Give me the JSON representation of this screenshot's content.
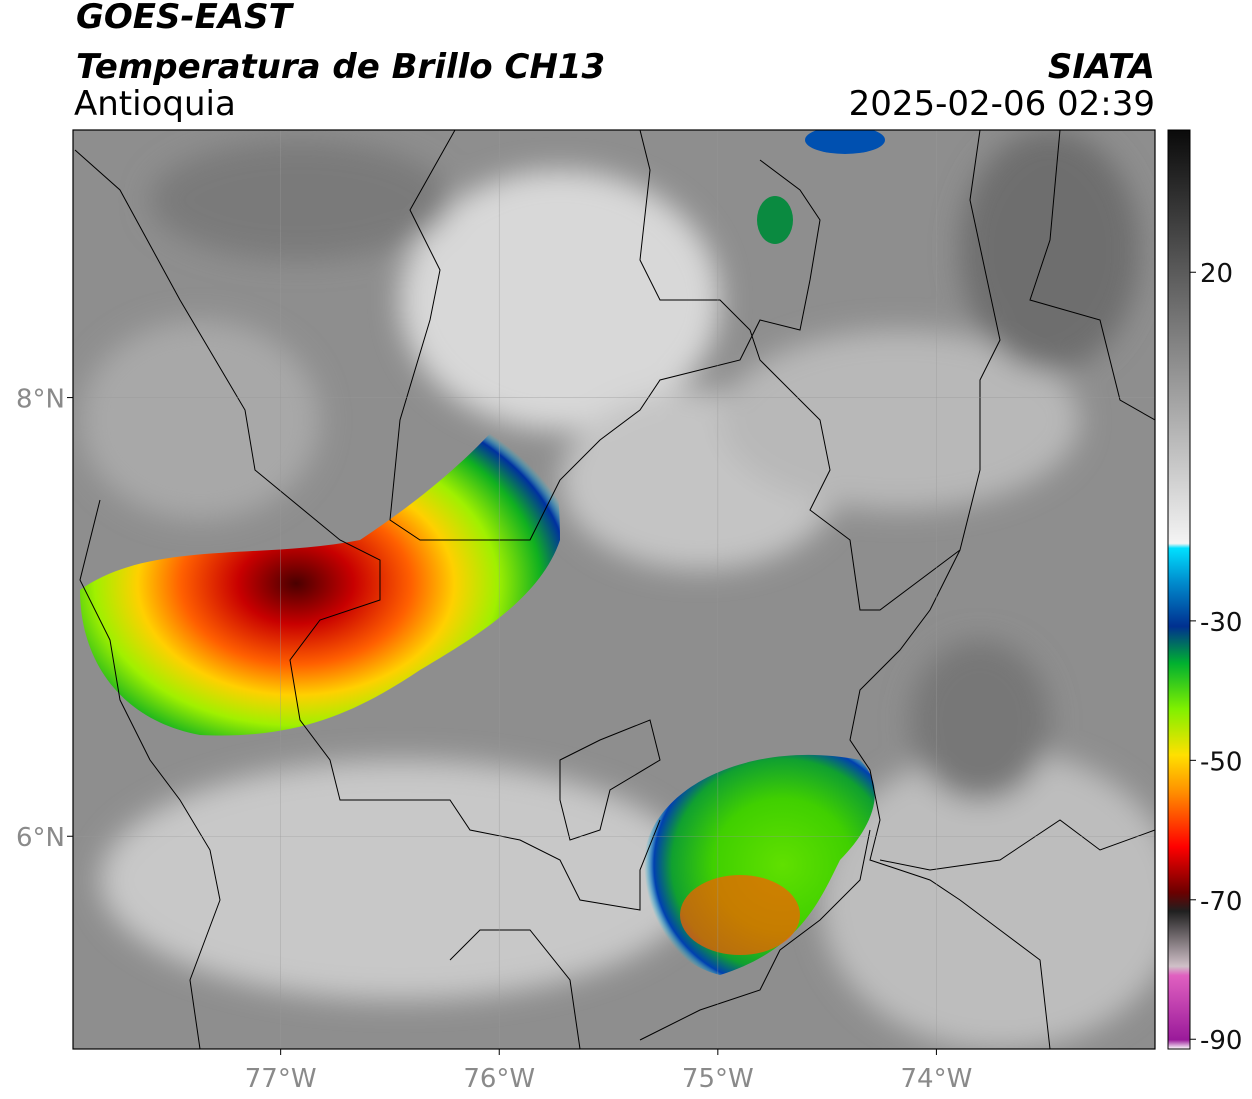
{
  "header": {
    "title": "GOES-EAST",
    "subtitle": "Temperatura de Brillo CH13",
    "region": "Antioquia",
    "source": "SIATA",
    "datetime": "2025-02-06 02:39"
  },
  "map": {
    "xlim": [
      -77.95,
      -73.0
    ],
    "ylim": [
      5.03,
      9.22
    ],
    "lat_ticks": [
      {
        "value": 8,
        "label": "8°N"
      },
      {
        "value": 6,
        "label": "6°N"
      }
    ],
    "lon_ticks": [
      {
        "value": -77,
        "label": "77°W"
      },
      {
        "value": -76,
        "label": "76°W"
      },
      {
        "value": -75,
        "label": "75°W"
      },
      {
        "value": -74,
        "label": "74°W"
      }
    ],
    "colorbar": {
      "lim": [
        -91.4,
        40.4
      ],
      "ticks": [
        20,
        -30,
        -50,
        -70,
        -90
      ]
    }
  }
}
